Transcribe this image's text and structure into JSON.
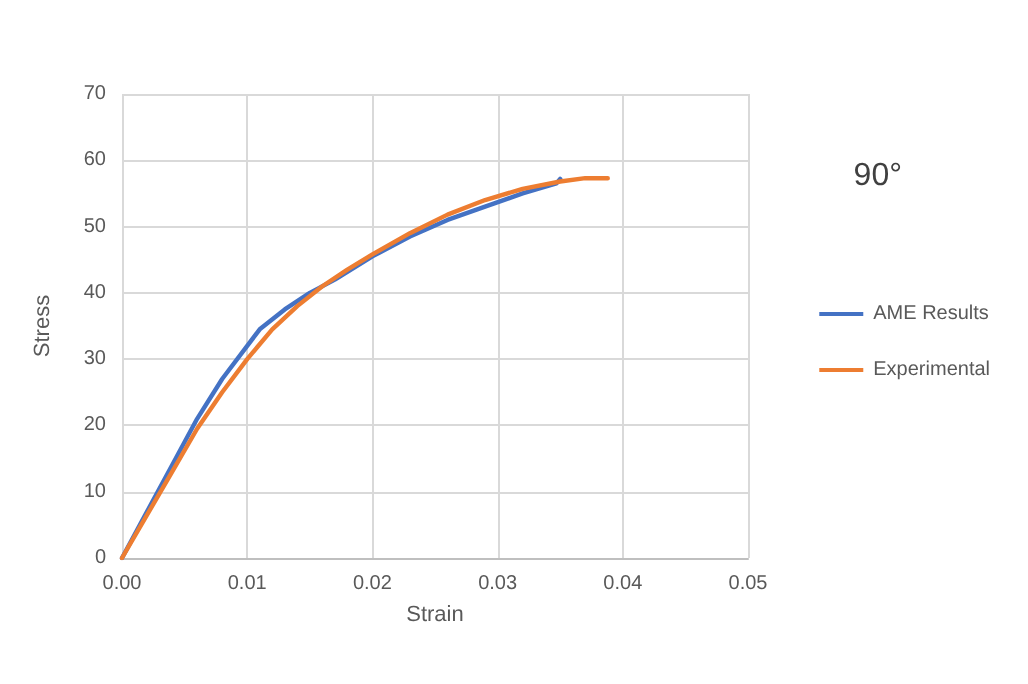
{
  "chart_data": {
    "type": "line",
    "xlabel": "Strain",
    "ylabel": "Stress",
    "annotations": [
      "90°"
    ],
    "xlim": [
      0,
      0.05
    ],
    "xticks": [
      {
        "value": 0,
        "label": "0.00"
      },
      {
        "value": 0.01,
        "label": "0.01"
      },
      {
        "value": 0.02,
        "label": "0.02"
      },
      {
        "value": 0.03,
        "label": "0.03"
      },
      {
        "value": 0.04,
        "label": "0.04"
      },
      {
        "value": 0.05,
        "label": "0.05"
      }
    ],
    "ylim": [
      0,
      70
    ],
    "yticks": [
      0,
      10,
      20,
      30,
      40,
      50,
      60,
      70
    ],
    "grid": true,
    "legend": "right",
    "marker": "none",
    "line_style": "solid",
    "series": [
      {
        "name": "AME Results",
        "color": "#4472c4",
        "x": [
          0,
          0.002,
          0.004,
          0.006,
          0.008,
          0.01,
          0.011,
          0.013,
          0.015,
          0.017,
          0.02,
          0.023,
          0.026,
          0.029,
          0.032,
          0.0347,
          0.035
        ],
        "values": [
          0,
          7,
          14,
          21,
          27,
          32,
          34.5,
          37.5,
          40,
          42,
          45.5,
          48.5,
          51,
          53,
          55,
          56.5,
          57.2
        ]
      },
      {
        "name": "Experimental",
        "color": "#ed7d31",
        "x": [
          0,
          0.002,
          0.004,
          0.006,
          0.008,
          0.01,
          0.012,
          0.014,
          0.016,
          0.018,
          0.02,
          0.023,
          0.026,
          0.029,
          0.032,
          0.035,
          0.037,
          0.0388
        ],
        "values": [
          0,
          6.5,
          13,
          19.5,
          25,
          30,
          34.5,
          38,
          41,
          43.5,
          45.8,
          49,
          51.8,
          54,
          55.7,
          56.8,
          57.3,
          57.3
        ]
      }
    ]
  }
}
